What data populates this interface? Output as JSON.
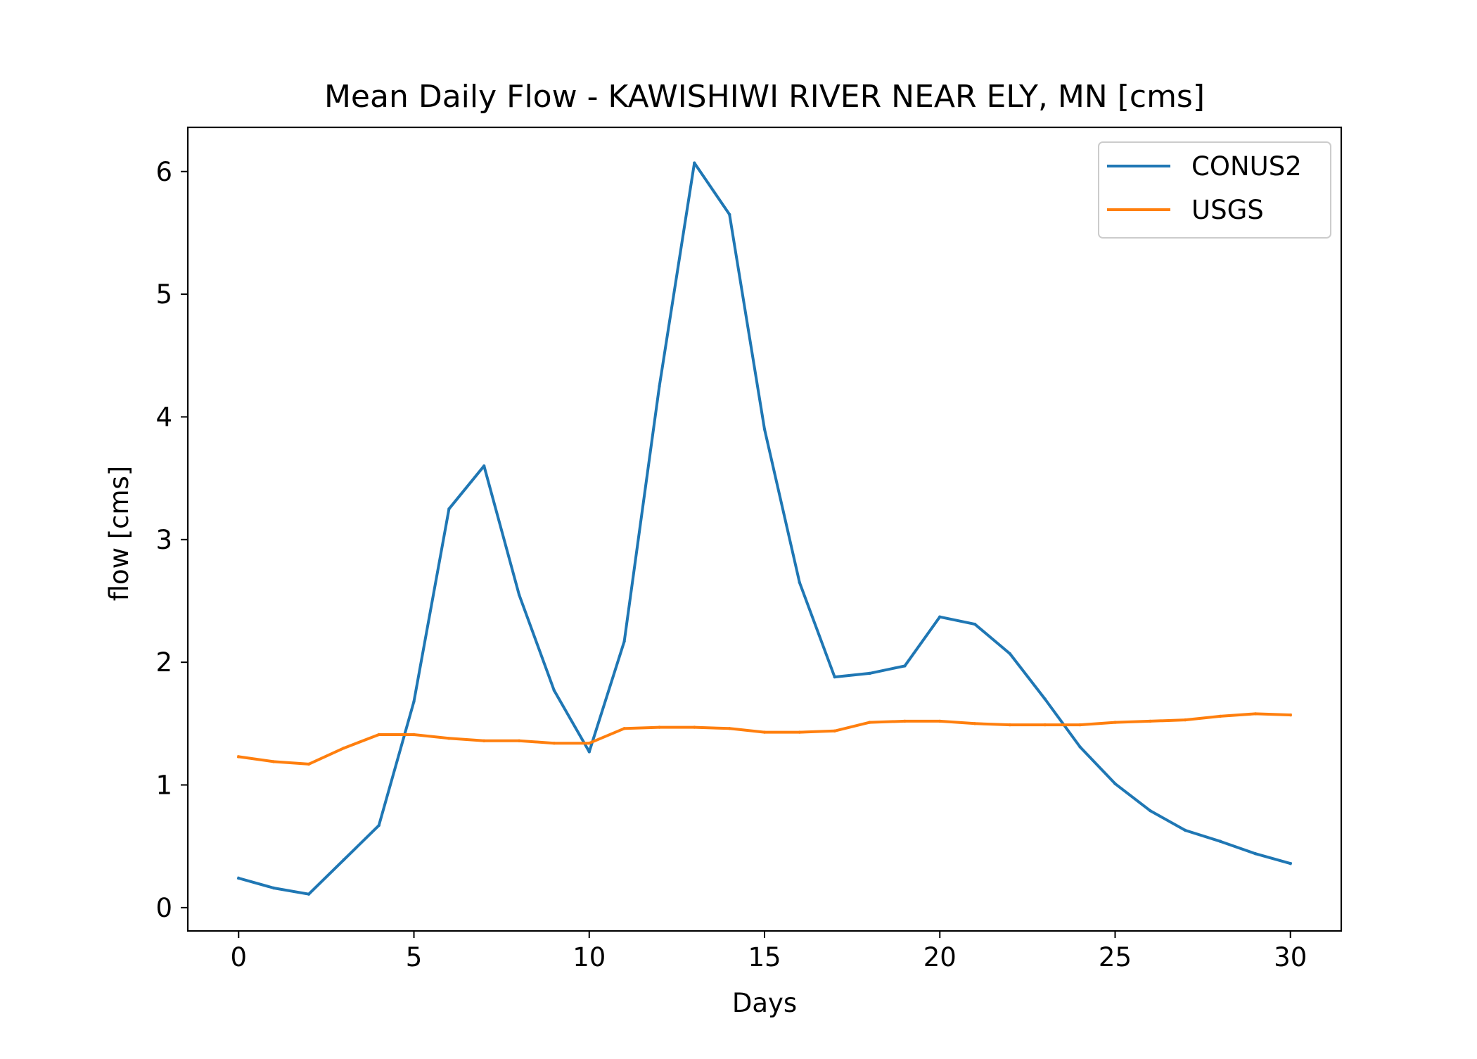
{
  "chart_data": {
    "type": "line",
    "title": "Mean Daily Flow - KAWISHIWI RIVER NEAR ELY, MN [cms]",
    "xlabel": "Days",
    "ylabel": "flow [cms]",
    "xlim": [
      -1.45,
      31.45
    ],
    "ylim": [
      -0.19,
      6.36
    ],
    "xticks": [
      0,
      5,
      10,
      15,
      20,
      25,
      30
    ],
    "yticks": [
      0,
      1,
      2,
      3,
      4,
      5,
      6
    ],
    "grid": false,
    "legend_position": "top-right",
    "x": [
      0,
      1,
      2,
      3,
      4,
      5,
      6,
      7,
      8,
      9,
      10,
      11,
      12,
      13,
      14,
      15,
      16,
      17,
      18,
      19,
      20,
      21,
      22,
      23,
      24,
      25,
      26,
      27,
      28,
      29,
      30
    ],
    "series": [
      {
        "name": "CONUS2",
        "color": "#1f77b4",
        "values": [
          0.24,
          0.16,
          0.11,
          0.39,
          0.67,
          1.68,
          3.25,
          3.6,
          2.55,
          1.77,
          1.27,
          2.17,
          4.25,
          6.07,
          5.65,
          3.9,
          2.65,
          1.88,
          1.91,
          1.97,
          2.37,
          2.31,
          2.07,
          1.7,
          1.31,
          1.01,
          0.79,
          0.63,
          0.54,
          0.44,
          0.36
        ]
      },
      {
        "name": "USGS",
        "color": "#ff7f0e",
        "values": [
          1.23,
          1.19,
          1.17,
          1.3,
          1.41,
          1.41,
          1.38,
          1.36,
          1.36,
          1.34,
          1.34,
          1.46,
          1.47,
          1.47,
          1.46,
          1.43,
          1.43,
          1.44,
          1.51,
          1.52,
          1.52,
          1.5,
          1.49,
          1.49,
          1.49,
          1.51,
          1.52,
          1.53,
          1.56,
          1.58,
          1.57
        ]
      }
    ]
  }
}
